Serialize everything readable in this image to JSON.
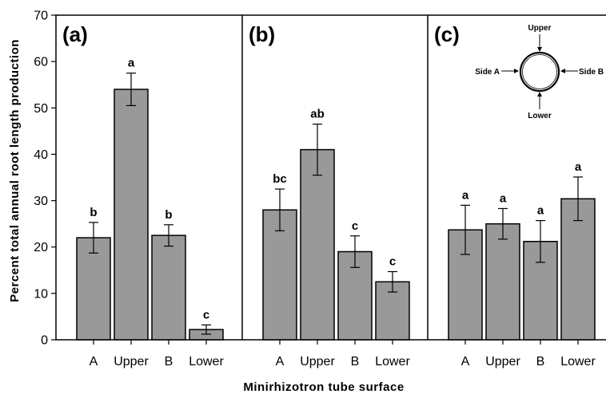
{
  "chart_data": {
    "type": "bar",
    "ylabel": "Percent total annual root length production",
    "xlabel": "Minirhizotron tube surface",
    "ylim": [
      0,
      70
    ],
    "yticks": [
      0,
      10,
      20,
      30,
      40,
      50,
      60,
      70
    ],
    "categories": [
      "A",
      "Upper",
      "B",
      "Lower"
    ],
    "bar_color": "#999999",
    "panels": [
      {
        "label": "(a)",
        "values": [
          22,
          54,
          22.5,
          2.2
        ],
        "errors": [
          3.3,
          3.5,
          2.3,
          1.0
        ],
        "letters": [
          "b",
          "a",
          "b",
          "c"
        ]
      },
      {
        "label": "(b)",
        "values": [
          28,
          41,
          19,
          12.5
        ],
        "errors": [
          4.5,
          5.5,
          3.4,
          2.2
        ],
        "letters": [
          "bc",
          "ab",
          "c",
          "c"
        ]
      },
      {
        "label": "(c)",
        "values": [
          23.7,
          25,
          21.2,
          30.4
        ],
        "errors": [
          5.3,
          3.3,
          4.5,
          4.7
        ],
        "letters": [
          "a",
          "a",
          "a",
          "a"
        ]
      }
    ],
    "inset": {
      "top": "Upper",
      "bottom": "Lower",
      "left": "Side A",
      "right": "Side B"
    }
  }
}
